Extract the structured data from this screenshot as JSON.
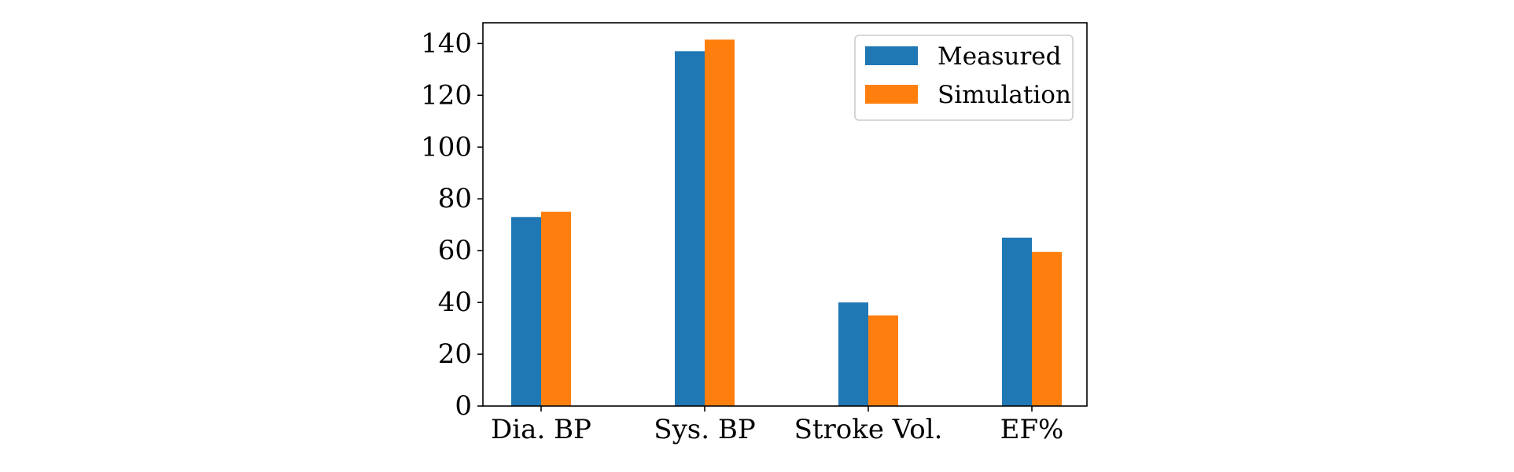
{
  "chart_data": {
    "type": "bar",
    "categories": [
      "Dia. BP",
      "Sys. BP",
      "Stroke Vol.",
      "EF%"
    ],
    "series": [
      {
        "name": "Measured",
        "values": [
          73,
          137,
          40,
          65
        ],
        "color": "#1f77b4"
      },
      {
        "name": "Simulation",
        "values": [
          75,
          141.5,
          35,
          59.5
        ],
        "color": "#ff7f0e"
      }
    ],
    "ylim": [
      0,
      148
    ],
    "yticks": [
      0,
      20,
      40,
      60,
      80,
      100,
      120,
      140
    ],
    "xlabel": "",
    "ylabel": "",
    "title": "",
    "grid": false,
    "legend_position": "top-right"
  }
}
